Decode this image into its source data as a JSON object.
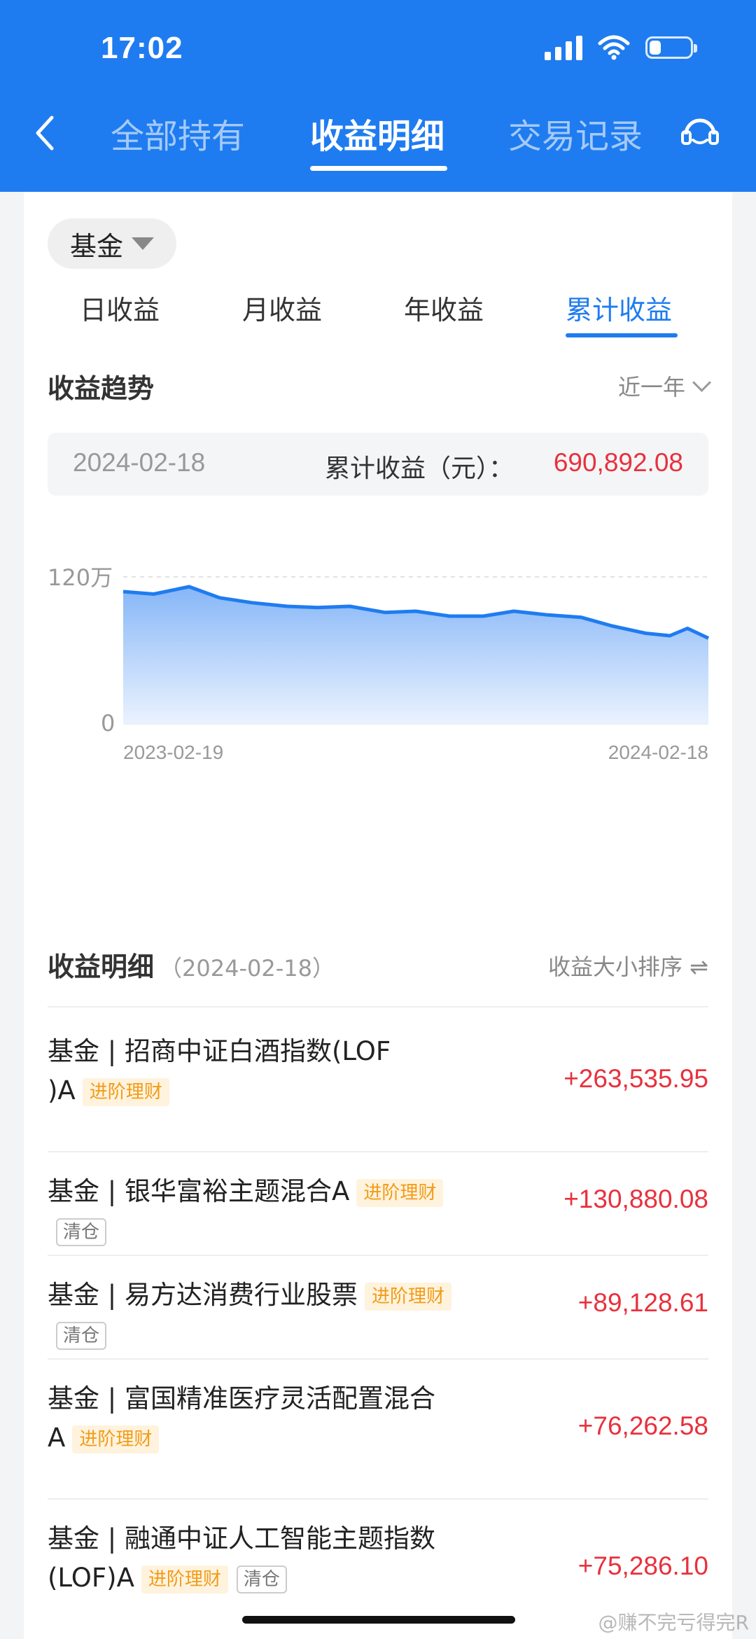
{
  "status_bar": {
    "time": "17:02"
  },
  "nav": {
    "tabs": [
      {
        "label": "全部持有"
      },
      {
        "label": "收益明细"
      },
      {
        "label": "交易记录"
      }
    ]
  },
  "filter": {
    "label": "基金"
  },
  "period_tabs": [
    {
      "label": "日收益"
    },
    {
      "label": "月收益"
    },
    {
      "label": "年收益"
    },
    {
      "label": "累计收益"
    }
  ],
  "trend": {
    "title": "收益趋势",
    "range": "近一年",
    "date": "2024-02-18",
    "label": "累计收益（元）：",
    "value": "690,892.08"
  },
  "colors": {
    "brand_blue": "#1f7cf0",
    "profit_red": "#e8313d",
    "tag_orange": "#f29b18"
  },
  "chart_data": {
    "type": "area",
    "y_tick_labels": [
      "120万",
      "0"
    ],
    "ylim": [
      0,
      1200000
    ],
    "x_tick_labels": [
      "2023-02-19",
      "2024-02-18"
    ],
    "x": [
      "2023-02-19",
      "2023-03-10",
      "2023-04-01",
      "2023-04-20",
      "2023-05-10",
      "2023-06-01",
      "2023-06-20",
      "2023-07-10",
      "2023-08-01",
      "2023-08-20",
      "2023-09-10",
      "2023-10-01",
      "2023-10-20",
      "2023-11-10",
      "2023-12-01",
      "2023-12-20",
      "2024-01-10",
      "2024-01-25",
      "2024-02-05",
      "2024-02-18"
    ],
    "values": [
      1080000,
      1060000,
      1120000,
      1030000,
      990000,
      960000,
      950000,
      960000,
      910000,
      920000,
      880000,
      880000,
      920000,
      890000,
      870000,
      800000,
      740000,
      720000,
      780000,
      700000
    ]
  },
  "detail": {
    "title": "收益明细",
    "date": "（2024-02-18）",
    "sort_label": "收益大小排序 ⇌",
    "items": [
      {
        "line1": "基金 | 招商中证白酒指数(LOF",
        "line2": ")A",
        "tag": "进阶理财",
        "value": "+263,535.95"
      },
      {
        "line1": "基金 | 银华富裕主题混合A",
        "tag": "进阶理财",
        "badge": "清仓",
        "value": "+130,880.08"
      },
      {
        "line1": "基金 | 易方达消费行业股票",
        "tag": "进阶理财",
        "badge": "清仓",
        "value": "+89,128.61"
      },
      {
        "line1": "基金 | 富国精准医疗灵活配置混合",
        "line2": "A",
        "tag": "进阶理财",
        "value": "+76,262.58"
      },
      {
        "line1": "基金 | 融通中证人工智能主题指数",
        "line2": "(LOF)A",
        "tag": "进阶理财",
        "badge": "清仓",
        "value": "+75,286.10"
      }
    ]
  },
  "watermark": "@赚不完亏得完R"
}
